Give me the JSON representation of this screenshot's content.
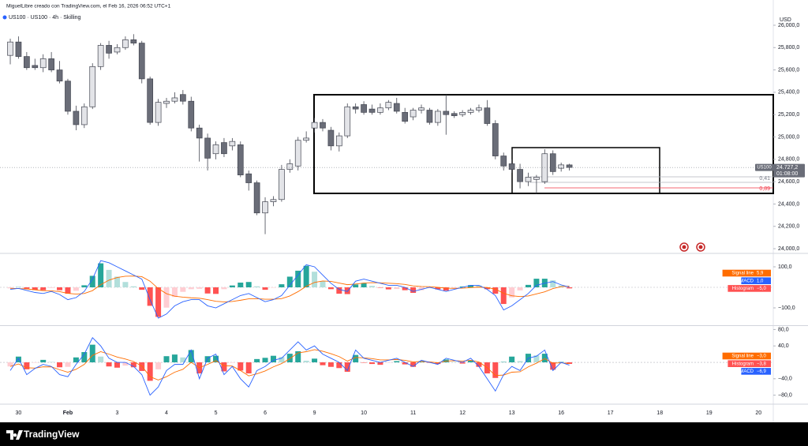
{
  "chart_data": [
    {
      "type": "candlestick",
      "title": "MiguelLibre creado con TradingView.com, el Feb 16, 2026 06:52 UTC+1",
      "subtitle": "US100 · US100 · 4h · Skilling",
      "y_label": "USD",
      "open": [
        25730,
        25850,
        25720,
        25640,
        25620,
        25700,
        25600,
        25500,
        25230,
        25110,
        25270,
        25630,
        25820,
        25760,
        25800,
        25870,
        25840,
        25520,
        25130,
        25300,
        25320,
        25380,
        25320,
        25080,
        24990,
        24850,
        24950,
        24920,
        24930,
        24670,
        24590,
        24320,
        24420,
        24440,
        24710,
        24740,
        24970,
        25080,
        25130,
        25060,
        24920,
        25010,
        25270,
        25290,
        25250,
        25220,
        25260,
        25300,
        25220,
        25180,
        25240,
        25240,
        25130,
        25230,
        25210,
        25200,
        25220,
        25240,
        25260,
        25120,
        24830,
        24760,
        24710,
        24600,
        24620,
        24600,
        24850,
        24720,
        24750
      ],
      "high": [
        25880,
        25900,
        25760,
        25700,
        25740,
        25760,
        25680,
        25520,
        25280,
        25300,
        25660,
        25840,
        25860,
        25830,
        25900,
        25920,
        25860,
        25540,
        25340,
        25350,
        25400,
        25420,
        25360,
        25110,
        25030,
        24960,
        24990,
        24990,
        24960,
        24700,
        24610,
        24460,
        24470,
        24750,
        24800,
        25000,
        25050,
        25170,
        25160,
        25090,
        25040,
        25300,
        25300,
        25320,
        25290,
        25300,
        25330,
        25350,
        25260,
        25260,
        25290,
        25260,
        25250,
        25380,
        25230,
        25240,
        25260,
        25290,
        25330,
        25150,
        24860,
        24800,
        24760,
        24680,
        24660,
        24890,
        24880,
        24770,
        24760
      ],
      "low": [
        25650,
        25700,
        25600,
        25600,
        25580,
        25580,
        25480,
        25200,
        25060,
        25080,
        25250,
        25600,
        25700,
        25740,
        25780,
        25820,
        25480,
        25110,
        25100,
        25260,
        25300,
        25290,
        25050,
        24780,
        24700,
        24800,
        24820,
        24880,
        24640,
        24520,
        24300,
        24130,
        24380,
        24420,
        24680,
        24700,
        24950,
        25040,
        25050,
        24880,
        24870,
        24990,
        25210,
        25200,
        25200,
        25200,
        25240,
        25210,
        25120,
        25150,
        25210,
        25110,
        25100,
        25020,
        25170,
        25180,
        25200,
        25220,
        25100,
        24800,
        24700,
        24680,
        24540,
        24560,
        24490,
        24580,
        24660,
        24690,
        24700
      ],
      "close": [
        25850,
        25720,
        25620,
        25620,
        25700,
        25600,
        25500,
        25230,
        25110,
        25270,
        25630,
        25820,
        25750,
        25800,
        25870,
        25840,
        25520,
        25130,
        25310,
        25320,
        25350,
        25320,
        25080,
        24990,
        24810,
        24930,
        24850,
        24960,
        24660,
        24590,
        24320,
        24420,
        24440,
        24710,
        24760,
        24970,
        24990,
        25130,
        25080,
        24920,
        25010,
        25270,
        25250,
        25220,
        25220,
        25260,
        25310,
        25230,
        25140,
        25240,
        25260,
        25130,
        25230,
        25200,
        25190,
        25220,
        25240,
        25260,
        25120,
        24830,
        24740,
        24710,
        24600,
        24640,
        24640,
        24850,
        24690,
        24750,
        24727.2
      ],
      "up_color": "#e3e4e8",
      "down_color": "#6a6d78",
      "border_color": "#434651",
      "xlim": [
        -1.25,
        92.8
      ],
      "xticks": [
        {
          "value": 1,
          "label": "30"
        },
        {
          "value": 7,
          "label": "Feb"
        },
        {
          "value": 13,
          "label": "3"
        },
        {
          "value": 19,
          "label": "4"
        },
        {
          "value": 25,
          "label": "5"
        },
        {
          "value": 31,
          "label": "6"
        },
        {
          "value": 37,
          "label": "9"
        },
        {
          "value": 43,
          "label": "10"
        },
        {
          "value": 49,
          "label": "11"
        },
        {
          "value": 55,
          "label": "12"
        },
        {
          "value": 61,
          "label": "13"
        },
        {
          "value": 67,
          "label": "16"
        },
        {
          "value": 73,
          "label": "17"
        },
        {
          "value": 79,
          "label": "18"
        },
        {
          "value": 85,
          "label": "19"
        },
        {
          "value": 91,
          "label": "20"
        }
      ],
      "ylim": [
        23965,
        26028
      ],
      "yticks": [
        {
          "value": 24000,
          "label": "24,000,0"
        },
        {
          "value": 24200,
          "label": "24,200,0"
        },
        {
          "value": 24400,
          "label": "24,400,0"
        },
        {
          "value": 24600,
          "label": "24,600,0"
        },
        {
          "value": 24800,
          "label": "24,800,0"
        },
        {
          "value": 25000,
          "label": "25,000,0"
        },
        {
          "value": 25200,
          "label": "25,200,0"
        },
        {
          "value": 25400,
          "label": "25,400,0"
        },
        {
          "value": 25600,
          "label": "25,600,0"
        },
        {
          "value": 25800,
          "label": "25,800,0"
        },
        {
          "value": 26000,
          "label": "26,000,0"
        }
      ],
      "symbol_tag": "US100",
      "last_price": {
        "value": 24727.2,
        "label": "24.727,2"
      },
      "countdown": "01:08:00",
      "level_labels": [
        "0,41",
        "0,89"
      ]
    },
    {
      "type": "macd",
      "ylim": [
        -184.6,
        161.5
      ],
      "yticks": [
        {
          "value": 100,
          "label": "100,0"
        },
        {
          "value": -100,
          "label": "−100,0"
        }
      ],
      "bar_colors": [
        "#26a69a",
        "#b2dfdb",
        "#ffcdd2",
        "#ff5252"
      ],
      "series": [
        {
          "name": "Signal line",
          "color": "#ff6d00",
          "last_label": "5,9",
          "values": [
            -5,
            -6,
            -8,
            -12,
            -16,
            -17,
            -21,
            -29,
            -33,
            -30,
            -16,
            13,
            35,
            48,
            54,
            55,
            52,
            30,
            -6,
            -31,
            -43,
            -48,
            -51,
            -53,
            -60,
            -68,
            -71,
            -69,
            -63,
            -56,
            -55,
            -58,
            -58,
            -55,
            -42,
            -21,
            5,
            24,
            31,
            29,
            21,
            13,
            16,
            21,
            23,
            22,
            20,
            18,
            14,
            7,
            4,
            3,
            0,
            -4,
            -5,
            -4,
            -1,
            1,
            -1,
            -9,
            -29,
            -41,
            -45,
            -42,
            -32,
            -22,
            -6,
            3,
            5.9
          ]
        },
        {
          "name": "MACD",
          "color": "#2962ff",
          "last_label": "1,0",
          "values": [
            -10,
            -5,
            -15,
            -25,
            -30,
            -20,
            -35,
            -60,
            -50,
            -20,
            40,
            130,
            120,
            100,
            80,
            60,
            40,
            -60,
            -150,
            -130,
            -90,
            -70,
            -60,
            -60,
            -90,
            -100,
            -80,
            -60,
            -40,
            -30,
            -50,
            -70,
            -60,
            -40,
            10,
            60,
            110,
            100,
            60,
            20,
            -10,
            -20,
            30,
            40,
            30,
            20,
            10,
            10,
            0,
            -20,
            -10,
            0,
            -10,
            -20,
            -10,
            0,
            10,
            10,
            -10,
            -40,
            -110,
            -90,
            -60,
            -30,
            10,
            20,
            28,
            12,
            1
          ]
        },
        {
          "name": "Histogram",
          "color": "#ff5252",
          "style": "histogram",
          "last_label": "−5,0",
          "values": [
            -5,
            1,
            -7,
            -13,
            -14,
            -3,
            -14,
            -31,
            -17,
            10,
            56,
            117,
            85,
            52,
            26,
            5,
            -12,
            -90,
            -144,
            -99,
            -47,
            -22,
            -9,
            -7,
            -30,
            -32,
            -9,
            9,
            23,
            26,
            5,
            -12,
            -2,
            15,
            52,
            81,
            105,
            76,
            29,
            -9,
            -31,
            -33,
            14,
            19,
            7,
            -2,
            -10,
            -8,
            -14,
            -27,
            -14,
            -3,
            -10,
            -16,
            -5,
            4,
            11,
            9,
            -9,
            -31,
            -81,
            -49,
            -15,
            12,
            42,
            42,
            34,
            9,
            -5.0
          ]
        }
      ]
    },
    {
      "type": "macd",
      "ylim": [
        -101.9,
        88.5
      ],
      "yticks": [
        {
          "value": 80,
          "label": "80,0"
        },
        {
          "value": 40,
          "label": "40,0"
        },
        {
          "value": -40,
          "label": "−40,0"
        },
        {
          "value": -80,
          "label": "−80,0"
        }
      ],
      "bar_colors": [
        "#26a69a",
        "#b2dfdb",
        "#ffcdd2",
        "#ff5252"
      ],
      "series": [
        {
          "name": "Signal line",
          "color": "#ff6d00",
          "last_label": "−3,0",
          "values": [
            -10,
            -4,
            -13,
            -14,
            -11,
            -11,
            -18,
            -24,
            -17,
            -5,
            17,
            26,
            20,
            13,
            8,
            2,
            -9,
            -35,
            -43,
            -35,
            -24,
            -17,
            0,
            -13,
            -5,
            4,
            -8,
            -9,
            -20,
            -33,
            -28,
            -21,
            -11,
            -3,
            9,
            23,
            26,
            31,
            27,
            21,
            14,
            3,
            12,
            11,
            9,
            6,
            6,
            7,
            5,
            1,
            2,
            1,
            -1,
            3,
            4,
            3,
            5,
            1,
            -13,
            -32,
            -31,
            -24,
            -23,
            -11,
            -2,
            9,
            -2,
            -1,
            -3.0
          ]
        },
        {
          "name": "Histogram",
          "color": "#ff5252",
          "style": "histogram",
          "last_label": "−3,8",
          "values": [
            -10,
            14,
            -17,
            -1,
            6,
            1,
            -12,
            -11,
            12,
            25,
            43,
            14,
            -10,
            -13,
            -8,
            -12,
            -21,
            -45,
            -17,
            15,
            19,
            12,
            30,
            -27,
            15,
            16,
            -22,
            -1,
            -20,
            -27,
            8,
            11,
            16,
            13,
            21,
            27,
            4,
            9,
            -7,
            -11,
            -14,
            -23,
            18,
            -1,
            -4,
            -6,
            -1,
            3,
            -5,
            -11,
            3,
            -1,
            -4,
            7,
            1,
            -3,
            5,
            -11,
            -27,
            -38,
            1,
            14,
            3,
            21,
            17,
            21,
            -18,
            1,
            -3.8
          ]
        },
        {
          "name": "MACD",
          "color": "#2962ff",
          "last_label": "−6,9",
          "values": [
            -20,
            10,
            -30,
            -15,
            -5,
            -10,
            -30,
            -35,
            -5,
            20,
            60,
            40,
            10,
            0,
            0,
            -10,
            -30,
            -80,
            -60,
            -20,
            -5,
            -5,
            30,
            -40,
            10,
            20,
            -30,
            -10,
            -40,
            -60,
            -20,
            -10,
            5,
            10,
            30,
            50,
            30,
            40,
            20,
            10,
            0,
            -20,
            30,
            10,
            5,
            0,
            5,
            10,
            0,
            -10,
            5,
            0,
            -5,
            10,
            5,
            0,
            10,
            -10,
            -40,
            -70,
            -30,
            -10,
            -20,
            10,
            15,
            30,
            -20,
            0,
            -6.9
          ]
        }
      ]
    }
  ],
  "footer": {
    "brand": "TradingView"
  }
}
